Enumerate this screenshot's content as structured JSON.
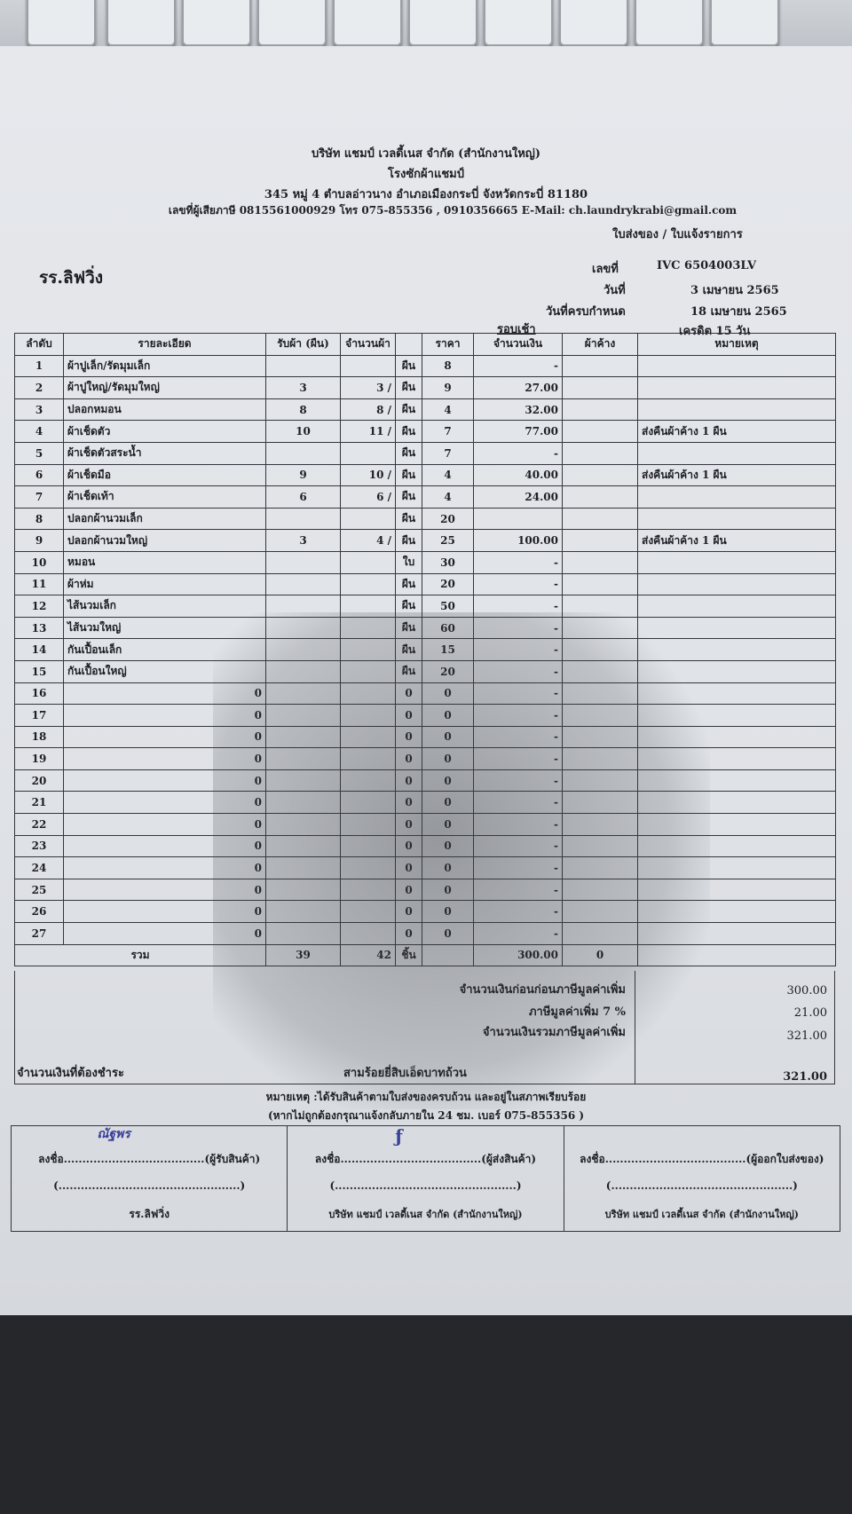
{
  "company": {
    "name": "บริษัท แชมป์ เวลดี้เนส จำกัด (สำนักงานใหญ่)",
    "subname": "โรงซักผ้าแชมป์",
    "address": "345 หมู่ 4 ตำบลอ่าวนาง อำเภอเมืองกระบี่ จังหวัดกระบี่ 81180",
    "contact": "เลขที่ผู้เสียภาษี 0815561000929 โทร 075-855356 , 0910356665 E-Mail: ch.laundrykrabi@gmail.com"
  },
  "doc": {
    "type": "ใบส่งของ / ใบแจ้งรายการ",
    "customer": "รร.ลิฟวิ่ง",
    "no_label": "เลขที่",
    "no": "IVC 6504003LV",
    "date_label": "วันที่",
    "date": "3 เมษายน 2565",
    "due_label": "วันที่ครบกำหนด",
    "due": "18 เมษายน 2565",
    "round": "รอบเช้า",
    "credit": "เครดิต 15 วัน"
  },
  "table": {
    "headers": [
      "ลำดับ",
      "รายละเอียด",
      "รับผ้า (ผืน)",
      "จำนวนผ้า",
      "",
      "ราคา",
      "จำนวนเงิน",
      "ผ้าค้าง",
      "หมายเหตุ"
    ],
    "rows": [
      [
        "1",
        "ผ้าปูเล็ก/รัดมุมเล็ก",
        "",
        "",
        "ผืน",
        "8",
        "-",
        "",
        ""
      ],
      [
        "2",
        "ผ้าปูใหญ่/รัดมุมใหญ่",
        "3",
        "3 /",
        "ผืน",
        "9",
        "27.00",
        "",
        ""
      ],
      [
        "3",
        "ปลอกหมอน",
        "8",
        "8 /",
        "ผืน",
        "4",
        "32.00",
        "",
        ""
      ],
      [
        "4",
        "ผ้าเช็ดตัว",
        "10",
        "11 /",
        "ผืน",
        "7",
        "77.00",
        "",
        "ส่งคืนผ้าค้าง 1 ผืน"
      ],
      [
        "5",
        "ผ้าเช็ดตัวสระน้ำ",
        "",
        "",
        "ผืน",
        "7",
        "-",
        "",
        ""
      ],
      [
        "6",
        "ผ้าเช็ดมือ",
        "9",
        "10 /",
        "ผืน",
        "4",
        "40.00",
        "",
        "ส่งคืนผ้าค้าง 1 ผืน"
      ],
      [
        "7",
        "ผ้าเช็ดเท้า",
        "6",
        "6 /",
        "ผืน",
        "4",
        "24.00",
        "",
        ""
      ],
      [
        "8",
        "ปลอกผ้านวมเล็ก",
        "",
        "",
        "ผืน",
        "20",
        "",
        "",
        ""
      ],
      [
        "9",
        "ปลอกผ้านวมใหญ่",
        "3",
        "4 /",
        "ผืน",
        "25",
        "100.00",
        "",
        "ส่งคืนผ้าค้าง 1 ผืน"
      ],
      [
        "10",
        "หมอน",
        "",
        "",
        "ใบ",
        "30",
        "-",
        "",
        ""
      ],
      [
        "11",
        "ผ้าห่ม",
        "",
        "",
        "ผืน",
        "20",
        "-",
        "",
        ""
      ],
      [
        "12",
        "ไส้นวมเล็ก",
        "",
        "",
        "ผืน",
        "50",
        "-",
        "",
        ""
      ],
      [
        "13",
        "ไส้นวมใหญ่",
        "",
        "",
        "ผืน",
        "60",
        "-",
        "",
        ""
      ],
      [
        "14",
        "กันเปื้อนเล็ก",
        "",
        "",
        "ผืน",
        "15",
        "-",
        "",
        ""
      ],
      [
        "15",
        "กันเปื้อนใหญ่",
        "",
        "",
        "ผืน",
        "20",
        "-",
        "",
        ""
      ],
      [
        "16",
        "0",
        "",
        "",
        "0",
        "0",
        "-",
        "",
        ""
      ],
      [
        "17",
        "0",
        "",
        "",
        "0",
        "0",
        "-",
        "",
        ""
      ],
      [
        "18",
        "0",
        "",
        "",
        "0",
        "0",
        "-",
        "",
        ""
      ],
      [
        "19",
        "0",
        "",
        "",
        "0",
        "0",
        "-",
        "",
        ""
      ],
      [
        "20",
        "0",
        "",
        "",
        "0",
        "0",
        "-",
        "",
        ""
      ],
      [
        "21",
        "0",
        "",
        "",
        "0",
        "0",
        "-",
        "",
        ""
      ],
      [
        "22",
        "0",
        "",
        "",
        "0",
        "0",
        "-",
        "",
        ""
      ],
      [
        "23",
        "0",
        "",
        "",
        "0",
        "0",
        "-",
        "",
        ""
      ],
      [
        "24",
        "0",
        "",
        "",
        "0",
        "0",
        "-",
        "",
        ""
      ],
      [
        "25",
        "0",
        "",
        "",
        "0",
        "0",
        "-",
        "",
        ""
      ],
      [
        "26",
        "0",
        "",
        "",
        "0",
        "0",
        "-",
        "",
        ""
      ],
      [
        "27",
        "0",
        "",
        "",
        "0",
        "0",
        "-",
        "",
        ""
      ]
    ],
    "total": {
      "label": "รวม",
      "received": "39",
      "count": "42",
      "unit": "ชิ้น",
      "amount": "300.00",
      "pending": "0"
    }
  },
  "summary": {
    "before_vat_label": "จำนวนเงินก่อนก่อนภาษีมูลค่าเพิ่ม",
    "before_vat": "300.00",
    "vat_label": "ภาษีมูลค่าเพิ่ม 7 %",
    "vat": "21.00",
    "total_label": "จำนวนเงินรวมภาษีมูลค่าเพิ่ม",
    "total": "321.00",
    "due_label": "จำนวนเงินที่ต้องชำระ",
    "due_words": "สามร้อยยี่สิบเอ็ดบาทถ้วน",
    "due": "321.00"
  },
  "note": {
    "line1": "หมายเหตุ :ได้รับสินค้าตามใบส่งของครบถ้วน และอยู่ในสภาพเรียบร้อย",
    "line2": "(หากไม่ถูกต้องกรุณาแจ้งกลับภายใน 24 ชม. เบอร์ 075-855356 )"
  },
  "signatures": [
    {
      "line": "ลงชื่อ......................................(ผู้รับสินค้า)",
      "handwriting": "ณัฐพร",
      "blank": "(.................................................)",
      "org": "รร.ลิฟวิ่ง"
    },
    {
      "line": "ลงชื่อ......................................(ผู้ส่งสินค้า)",
      "handwriting": "ƒ",
      "blank": "(.................................................)",
      "org": "บริษัท แชมป์ เวลดี้เนส จำกัด (สำนักงานใหญ่)"
    },
    {
      "line": "ลงชื่อ......................................(ผู้ออกใบส่งของ)",
      "handwriting": "",
      "blank": "(.................................................)",
      "org": "บริษัท แชมป์ เวลดี้เนส จำกัด (สำนักงานใหญ่)"
    }
  ]
}
